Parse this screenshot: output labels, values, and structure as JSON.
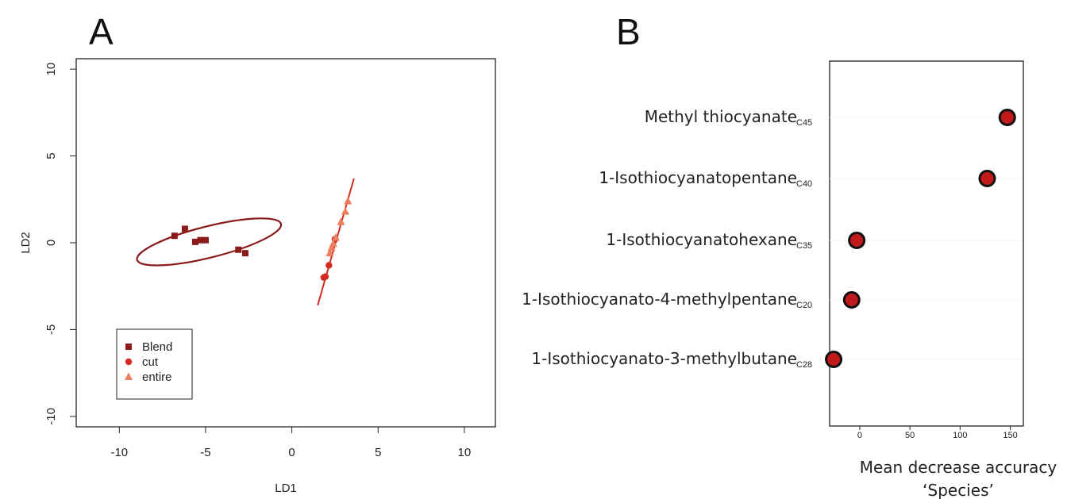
{
  "panel_a_letter": "A",
  "panel_b_letter": "B",
  "colors": {
    "blend": "#8B1A1A",
    "cut": "#D42A20",
    "entire": "#EE7F5E",
    "dot_fill": "#C21A1A",
    "dot_stroke": "#111111",
    "gridline": "#d8d8d8",
    "frame": "#222222"
  },
  "chart_data": [
    {
      "type": "scatter",
      "title": "",
      "xlabel": "LD1",
      "ylabel": "LD2",
      "xlim": [
        -12.5,
        11.8
      ],
      "ylim": [
        -10.6,
        10.6
      ],
      "xticks": [
        -10,
        -5,
        0,
        5,
        10
      ],
      "xtick_labels": [
        "-10",
        "-5",
        "0",
        "5",
        "10"
      ],
      "yticks": [
        -10,
        -5,
        0,
        5,
        10
      ],
      "ytick_labels": [
        "-10",
        "-5",
        "0",
        "5",
        "10"
      ],
      "grid": false,
      "legend_position": "bottom-left",
      "series": [
        {
          "name": "Blend",
          "marker": "square",
          "points": [
            [
              -6.8,
              0.4
            ],
            [
              -6.2,
              0.8
            ],
            [
              -5.6,
              0.05
            ],
            [
              -5.3,
              0.15
            ],
            [
              -5.0,
              0.15
            ],
            [
              -3.1,
              -0.4
            ],
            [
              -2.7,
              -0.6
            ]
          ]
        },
        {
          "name": "cut",
          "marker": "circle",
          "points": [
            [
              1.85,
              -2.0
            ],
            [
              1.95,
              -1.95
            ],
            [
              2.15,
              -1.3
            ],
            [
              2.5,
              0.2
            ]
          ]
        },
        {
          "name": "entire",
          "marker": "triangle",
          "points": [
            [
              2.2,
              -0.6
            ],
            [
              2.3,
              -0.3
            ],
            [
              2.4,
              -0.05
            ],
            [
              2.55,
              0.3
            ],
            [
              2.85,
              1.2
            ],
            [
              3.1,
              1.8
            ],
            [
              3.25,
              2.4
            ]
          ]
        }
      ],
      "ellipse_blend": {
        "cx": -4.8,
        "cy": 0.05,
        "rx": 4.3,
        "ry": 0.45,
        "angle_deg": -14
      },
      "fit_line": {
        "x1": 1.5,
        "y1": -3.6,
        "x2": 3.6,
        "y2": 3.7
      }
    },
    {
      "type": "dot",
      "title": "",
      "xlabel": "Mean decrease accuracy",
      "xlabel2": "‘Species’",
      "xlim": [
        -30,
        163
      ],
      "xticks": [
        0,
        50,
        100,
        150
      ],
      "xtick_labels": [
        "0",
        "50",
        "100",
        "150"
      ],
      "grid": "horizontal-dotted",
      "rows": [
        {
          "label": "Methyl thiocyanate",
          "code": "C45",
          "value": 147
        },
        {
          "label": "1-Isothiocyanatopentane",
          "code": "C40",
          "value": 127
        },
        {
          "label": "1-Isothiocyanatohexane",
          "code": "C35",
          "value": -3
        },
        {
          "label": "1-Isothiocyanato-4-methylpentane",
          "code": "C20",
          "value": -8
        },
        {
          "label": "1-Isothiocyanato-3-methylbutane",
          "code": "C28",
          "value": -26
        }
      ]
    }
  ]
}
